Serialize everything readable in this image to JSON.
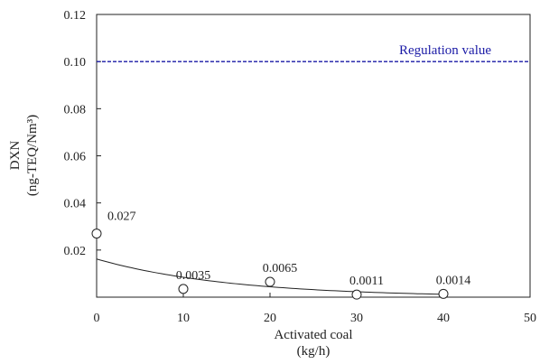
{
  "chart_data": {
    "type": "scatter",
    "title": "",
    "xlabel": [
      "Activated coal",
      "(kg/h)"
    ],
    "ylabel": [
      "DXN",
      "(ng-TEQ/Nm³)"
    ],
    "xlim": [
      0,
      50
    ],
    "ylim": [
      0,
      0.12
    ],
    "x_ticks": [
      "0",
      "10",
      "20",
      "30",
      "40",
      "50"
    ],
    "y_ticks": [
      "0.02",
      "0.04",
      "0.06",
      "0.08",
      "0.10",
      "0.12"
    ],
    "grid": false,
    "points": [
      {
        "x": 0,
        "y": 0.027,
        "label": "0.027"
      },
      {
        "x": 10,
        "y": 0.0035,
        "label": "0.0035"
      },
      {
        "x": 20,
        "y": 0.0065,
        "label": "0.0065"
      },
      {
        "x": 30,
        "y": 0.0011,
        "label": "0.0011"
      },
      {
        "x": 40,
        "y": 0.0014,
        "label": "0.0014"
      }
    ],
    "trendline": {
      "type": "exponential",
      "a": 0.0162,
      "b": -0.065,
      "x_range": [
        0,
        40
      ]
    },
    "reference_line": {
      "y": 0.1,
      "label": "Regulation value",
      "color": "#1a1aa6",
      "style": "dashed"
    },
    "marker_style": "open-circle"
  }
}
